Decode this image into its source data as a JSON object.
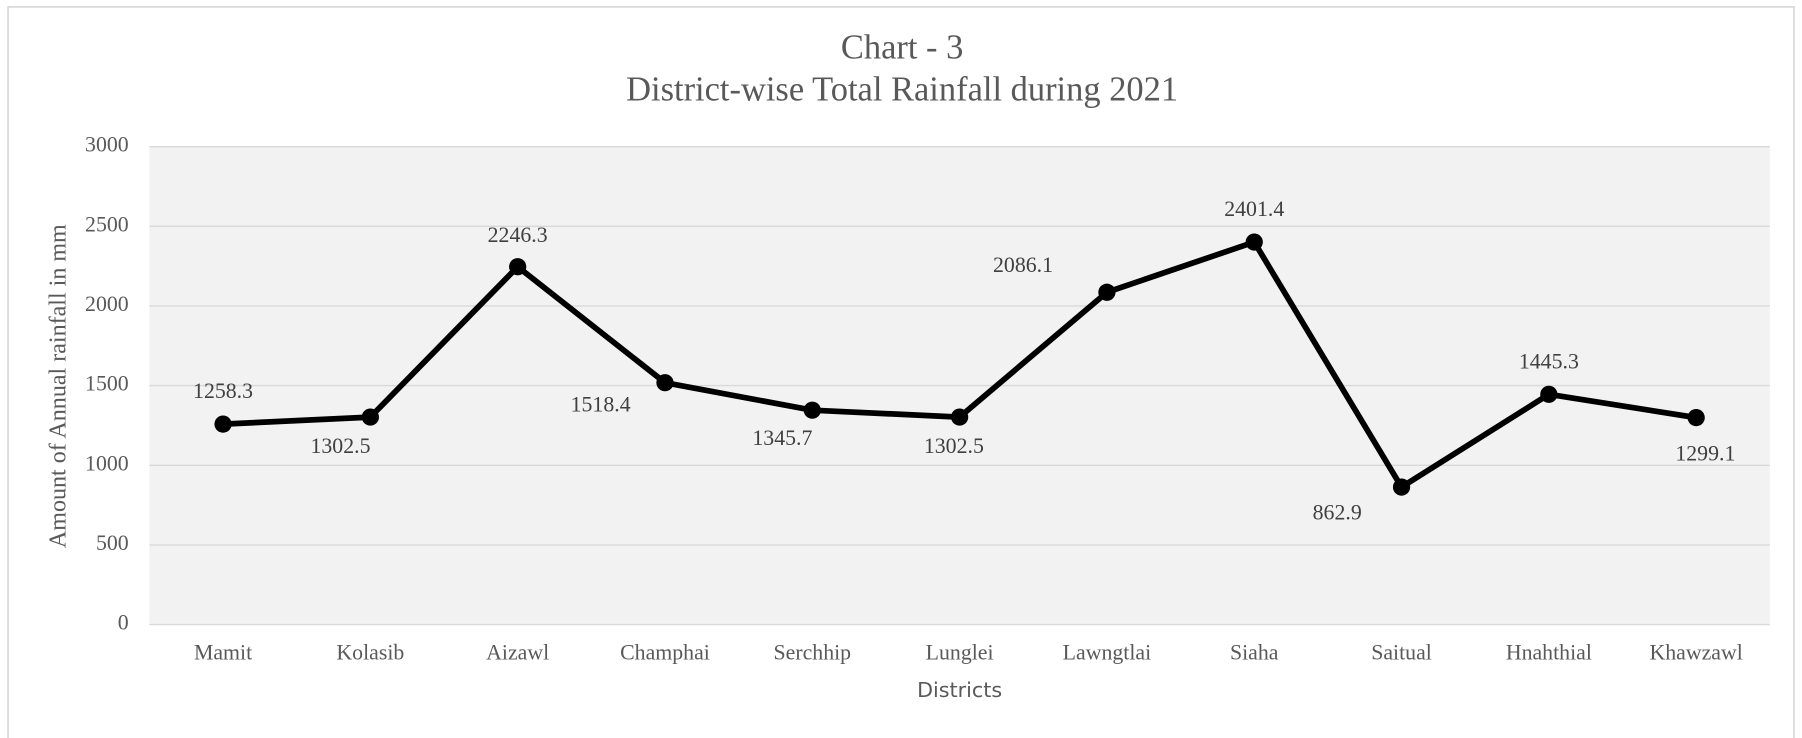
{
  "chart_data": {
    "type": "line",
    "title": "Chart - 3",
    "subtitle": "District-wise Total Rainfall during 2021",
    "x_label": "Districts",
    "y_label": "Amount of Annual rainfall in mm",
    "categories": [
      "Mamit",
      "Kolasib",
      "Aizawl",
      "Champhai",
      "Serchhip",
      "Lunglei",
      "Lawngtlai",
      "Siaha",
      "Saitual",
      "Hnahthial",
      "Khawzawl"
    ],
    "series": [
      {
        "name": "Total Rainfall",
        "color": "#000000",
        "values": [
          1258.3,
          1302.5,
          2246.3,
          1518.4,
          1345.7,
          1302.5,
          2086.1,
          2401.4,
          862.9,
          1445.3,
          1299.1
        ]
      }
    ],
    "ylim": [
      0,
      3000
    ],
    "yticks": [
      0,
      500,
      1000,
      1500,
      2000,
      2500,
      3000
    ],
    "grid": true,
    "plot_background": "#f2f2f2"
  }
}
